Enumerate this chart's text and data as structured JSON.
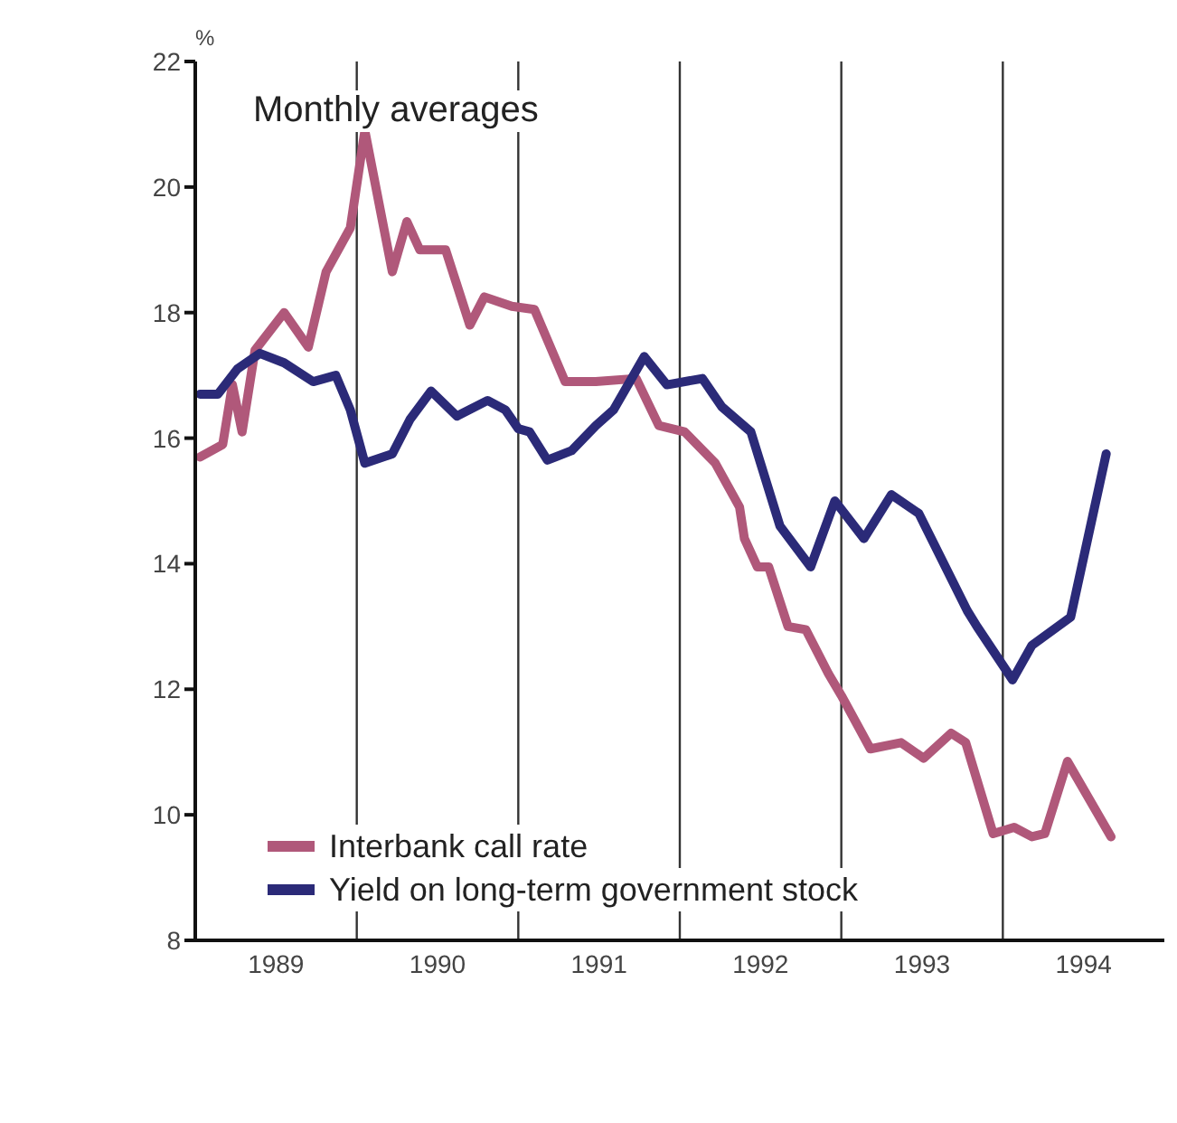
{
  "chart_data": {
    "type": "line",
    "ylabel": "%",
    "annotations": [
      "Monthly averages"
    ],
    "xlim": [
      1989,
      1995
    ],
    "xticks": [
      {
        "value": 1989.5,
        "label": "1989"
      },
      {
        "value": 1990.5,
        "label": "1990"
      },
      {
        "value": 1991.5,
        "label": "1991"
      },
      {
        "value": 1992.5,
        "label": "1992"
      },
      {
        "value": 1993.5,
        "label": "1993"
      },
      {
        "value": 1994.5,
        "label": "1994"
      }
    ],
    "ylim": [
      8,
      22
    ],
    "yticks": [
      8,
      10,
      12,
      14,
      16,
      18,
      20,
      22
    ],
    "grid": false,
    "legend": "bottom left",
    "marker": "none",
    "line_style": "solid",
    "ref_lines": [
      {
        "axis": "x",
        "value": 1990
      },
      {
        "axis": "x",
        "value": 1991
      },
      {
        "axis": "x",
        "value": 1992
      },
      {
        "axis": "x",
        "value": 1993
      },
      {
        "axis": "x",
        "value": 1994
      }
    ],
    "series": [
      {
        "name": "Interbank call rate",
        "color": "#b0587a",
        "x": [
          1989.03,
          1989.17,
          1989.23,
          1989.29,
          1989.37,
          1989.55,
          1989.7,
          1989.81,
          1989.96,
          1990.05,
          1990.22,
          1990.31,
          1990.39,
          1990.55,
          1990.7,
          1990.79,
          1990.96,
          1991.1,
          1991.29,
          1991.48,
          1991.73,
          1991.87,
          1992.03,
          1992.22,
          1992.37,
          1992.4,
          1992.48,
          1992.55,
          1992.67,
          1992.78,
          1992.92,
          1993.0,
          1993.18,
          1993.37,
          1993.51,
          1993.68,
          1993.77,
          1993.94,
          1994.07,
          1994.18,
          1994.26,
          1994.4,
          1994.67
        ],
        "values": [
          15.7,
          15.9,
          16.85,
          16.1,
          17.4,
          18.0,
          17.45,
          18.65,
          19.35,
          20.9,
          18.65,
          19.45,
          19.0,
          19.0,
          17.8,
          18.25,
          18.1,
          18.05,
          16.9,
          16.9,
          16.95,
          16.2,
          16.1,
          15.6,
          14.9,
          14.4,
          13.95,
          13.95,
          13.0,
          12.95,
          12.25,
          11.9,
          11.05,
          11.15,
          10.9,
          11.3,
          11.15,
          9.7,
          9.8,
          9.65,
          9.7,
          10.85,
          9.65
        ]
      },
      {
        "name": "Yield on long-term government stock",
        "color": "#2b2a78",
        "x": [
          1989.03,
          1989.14,
          1989.26,
          1989.4,
          1989.55,
          1989.73,
          1989.87,
          1989.96,
          1990.05,
          1990.22,
          1990.33,
          1990.46,
          1990.62,
          1990.81,
          1990.92,
          1991.0,
          1991.07,
          1991.18,
          1991.33,
          1991.48,
          1991.59,
          1991.78,
          1991.92,
          1992.14,
          1992.26,
          1992.44,
          1992.62,
          1992.81,
          1992.96,
          1993.14,
          1993.31,
          1993.48,
          1993.78,
          1993.84,
          1994.06,
          1994.18,
          1994.42,
          1994.64
        ],
        "values": [
          16.7,
          16.7,
          17.1,
          17.35,
          17.2,
          16.9,
          17.0,
          16.45,
          15.6,
          15.75,
          16.3,
          16.75,
          16.35,
          16.6,
          16.45,
          16.15,
          16.1,
          15.65,
          15.8,
          16.2,
          16.45,
          17.3,
          16.85,
          16.95,
          16.5,
          16.1,
          14.6,
          13.95,
          15.0,
          14.4,
          15.1,
          14.8,
          13.25,
          13.0,
          12.15,
          12.7,
          13.15,
          15.75
        ]
      }
    ]
  }
}
